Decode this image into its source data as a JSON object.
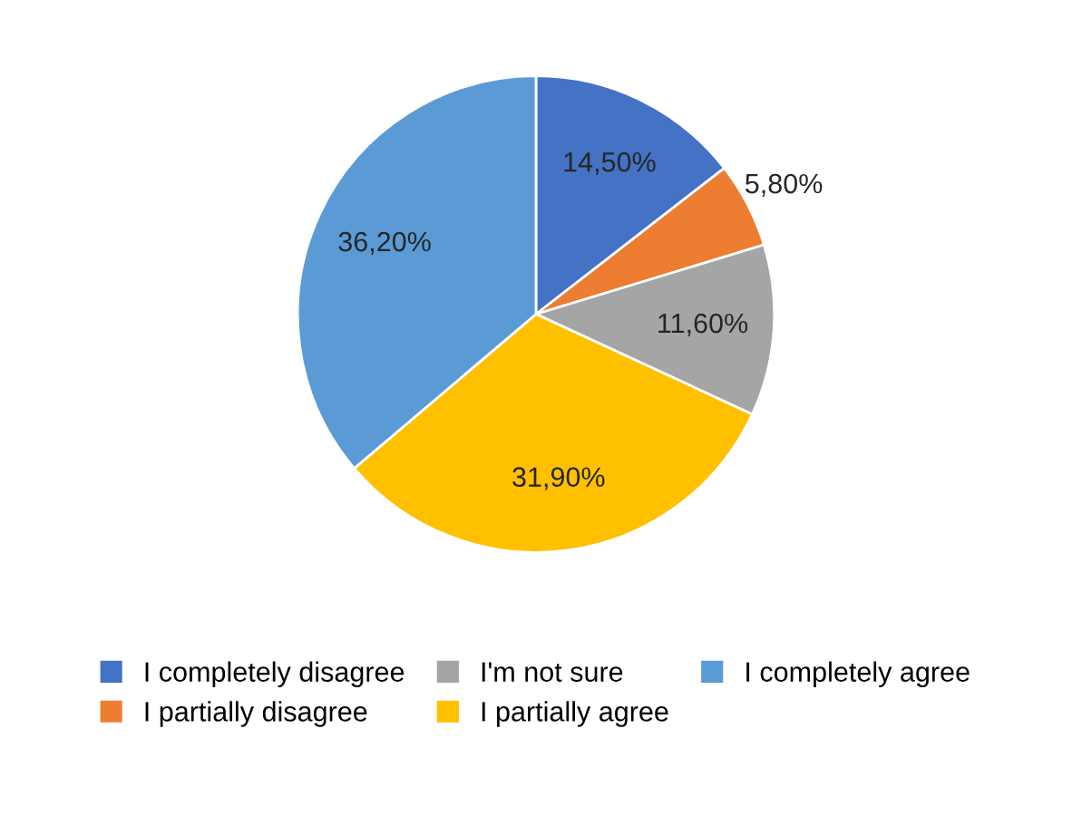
{
  "chart_data": {
    "type": "pie",
    "categories": [
      "I completely disagree",
      "I partially disagree",
      "I'm not sure",
      "I partially agree",
      "I completely agree"
    ],
    "values": [
      14.5,
      5.8,
      11.6,
      31.9,
      36.2
    ],
    "value_labels": [
      "14,50%",
      "5,80%",
      "11,60%",
      "31,90%",
      "36,20%"
    ],
    "colors": [
      "#4472c4",
      "#ed7d31",
      "#a5a5a5",
      "#ffc000",
      "#5b9bd5"
    ],
    "legend": "bottom"
  }
}
